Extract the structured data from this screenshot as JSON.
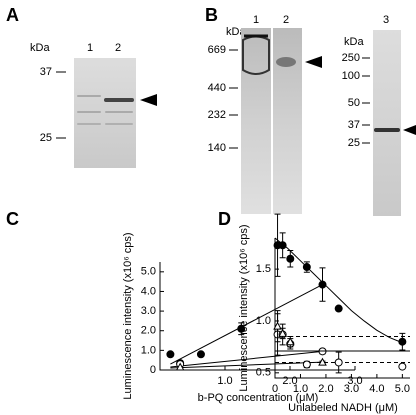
{
  "panels": {
    "A": {
      "label": "A",
      "unit": "kDa",
      "lanes": [
        "1",
        "2"
      ],
      "markers": [
        37,
        25
      ]
    },
    "B": {
      "label": "B",
      "unit_left": "kDa",
      "lanes_left": [
        "1",
        "2"
      ],
      "markers_left": [
        669,
        440,
        232,
        140
      ],
      "unit_right": "kDa",
      "lanes_right": [
        "3"
      ],
      "markers_right": [
        250,
        100,
        50,
        37,
        25
      ]
    }
  },
  "chart_data": [
    {
      "type": "scatter",
      "panel_label": "C",
      "x_label": "b-PQ concentration (μM)",
      "y_label": "Luminescence intensity (x10⁶ cps)",
      "xlim": [
        0,
        3.0
      ],
      "ylim": [
        0,
        5.5
      ],
      "xticks": [
        {
          "value": 1,
          "label": "1.0"
        },
        {
          "value": 2,
          "label": "2.0"
        },
        {
          "value": 3,
          "label": "3.0"
        }
      ],
      "yticks": [
        0,
        {
          "value": 1,
          "label": "1.0"
        },
        {
          "value": 2,
          "label": "2.0"
        },
        {
          "value": 3,
          "label": "3.0"
        },
        {
          "value": 4,
          "label": "4.0"
        },
        {
          "value": 5,
          "label": "5.0"
        }
      ],
      "series": [
        {
          "marker": "filled-circle",
          "color": "#000000",
          "x": [
            0.16,
            0.31,
            0.63,
            1.25,
            2.5
          ],
          "values": [
            0.8,
            0.35,
            0.8,
            2.1,
            4.35
          ],
          "errors": [
            0,
            0.1,
            0,
            0.3,
            0.85
          ],
          "fit_x": [
            0.16,
            2.5
          ],
          "fit_values": [
            0.3,
            4.35
          ]
        },
        {
          "marker": "open-circle",
          "color": "#000000",
          "x": [
            0.31,
            2.5
          ],
          "values": [
            0.3,
            0.95
          ],
          "errors": [
            0,
            0.12
          ],
          "fit_x": [
            0.16,
            2.5
          ],
          "fit_values": [
            0.15,
            0.95
          ]
        },
        {
          "marker": "open-triangle",
          "color": "#000000",
          "x": [
            0.31,
            2.5
          ],
          "values": [
            0.15,
            0.4
          ],
          "errors": [
            0,
            0.05
          ],
          "fit_x": [
            0.16,
            2.5
          ],
          "fit_values": [
            0.1,
            0.4
          ]
        }
      ]
    },
    {
      "type": "scatter",
      "panel_label": "D",
      "x_label": "Unlabeled NADH (μM)",
      "y_label": "Luminescence intensity (x10⁶ cps)",
      "xlim": [
        0,
        5.3
      ],
      "ylim": [
        0.45,
        1.8
      ],
      "xticks": [
        0,
        {
          "value": 1,
          "label": "1.0"
        },
        {
          "value": 2,
          "label": "2.0"
        },
        {
          "value": 3,
          "label": "3.0"
        },
        {
          "value": 4,
          "label": "4.0"
        },
        {
          "value": 5,
          "label": "5.0"
        }
      ],
      "yticks": [
        0.5,
        {
          "value": 1,
          "label": "1.0"
        },
        1.5
      ],
      "reference_lines": [
        {
          "value": 0.85,
          "dash": true
        },
        {
          "value": 0.71,
          "dash": false
        },
        {
          "value": 0.6,
          "dash": true
        }
      ],
      "series": [
        {
          "marker": "filled-circle",
          "color": "#000000",
          "x": [
            0.1,
            0.3,
            0.6,
            1.25,
            2.5,
            5.0
          ],
          "values": [
            1.73,
            1.73,
            1.6,
            1.52,
            1.12,
            0.8
          ],
          "errors": [
            0.3,
            0.12,
            0.08,
            0.05,
            0,
            0.08
          ],
          "fit_x": [
            0,
            0.5,
            1,
            1.5,
            2,
            2.5,
            3,
            3.5,
            4,
            4.5,
            5
          ],
          "fit_values": [
            1.8,
            1.7,
            1.58,
            1.46,
            1.34,
            1.22,
            1.1,
            1.0,
            0.91,
            0.84,
            0.79
          ]
        },
        {
          "marker": "open-circle",
          "color": "#000000",
          "x": [
            0.1,
            0.3,
            0.6,
            1.25,
            2.5,
            5.0
          ],
          "values": [
            0.87,
            0.87,
            0.78,
            0.58,
            0.6,
            0.56
          ],
          "errors": [
            0.2,
            0.1,
            0.05,
            0.03,
            0.1,
            0
          ]
        },
        {
          "marker": "open-triangle",
          "color": "#000000",
          "x": [
            0.1,
            0.3,
            0.6
          ],
          "values": [
            0.95,
            0.88,
            0.8
          ],
          "errors": [
            0.15,
            0.05,
            0.05
          ]
        }
      ]
    }
  ]
}
